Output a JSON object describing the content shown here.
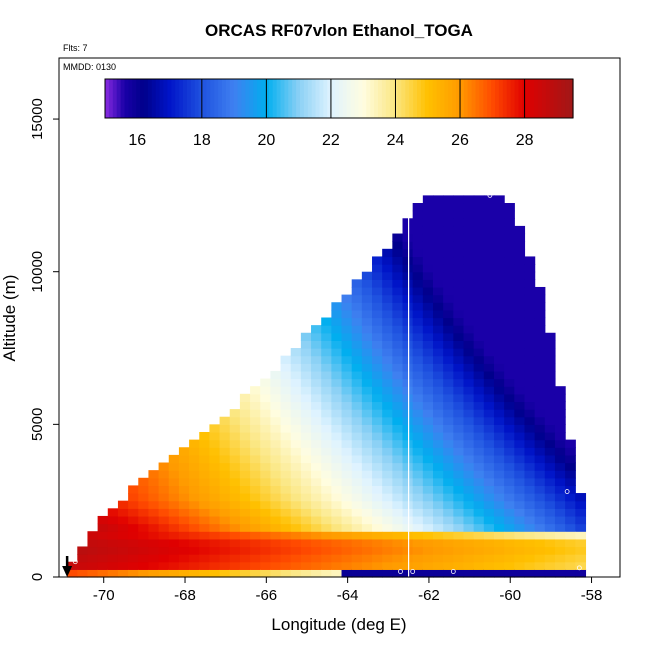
{
  "chart_data": {
    "type": "heatmap",
    "title": "ORCAS RF07vlon Ethanol_TOGA",
    "subtitle_flights": "Flts: 7",
    "subtitle_date": "MMDD: 0130",
    "xlabel": "Longitude (deg E)",
    "ylabel": "Altitude (m)",
    "xlim": [
      -71.1,
      -57.3
    ],
    "ylim": [
      0,
      17000
    ],
    "xticks": [
      -70,
      -68,
      -66,
      -64,
      -62,
      -60,
      -58
    ],
    "yticks": [
      0,
      5000,
      10000,
      15000
    ],
    "colorbar": {
      "range": [
        15,
        29.5
      ],
      "ticks": [
        16,
        18,
        20,
        22,
        24,
        26,
        28
      ],
      "boundaries": [
        18,
        20,
        22,
        24,
        26,
        28
      ]
    },
    "grid": {
      "lon_min": -70.9,
      "lon_max": -58.4,
      "lon_step": 0.25,
      "alt_step": 250,
      "top_altitude_profile": [
        [
          -70.9,
          500
        ],
        [
          -70.1,
          2000
        ],
        [
          -69.0,
          3500
        ],
        [
          -67.5,
          4800
        ],
        [
          -66.0,
          6700
        ],
        [
          -64.5,
          8800
        ],
        [
          -63.0,
          11000
        ],
        [
          -62.6,
          11900
        ],
        [
          -62.3,
          12500
        ],
        [
          -60.2,
          12500
        ],
        [
          -59.5,
          10000
        ],
        [
          -59.0,
          7000
        ],
        [
          -58.6,
          4000
        ],
        [
          -58.4,
          2800
        ]
      ],
      "value_model": {
        "surface_core": [
          27.5,
          29.0
        ],
        "low_cloud_band_altitude_m": [
          300,
          1500
        ],
        "lower_band_value": 16.5,
        "upper_left_value": 24.5,
        "upper_right_value": 15.8
      }
    },
    "vertical_line_lon": -62.5,
    "arrow_lon": -70.9,
    "annotations": [
      "o"
    ]
  }
}
